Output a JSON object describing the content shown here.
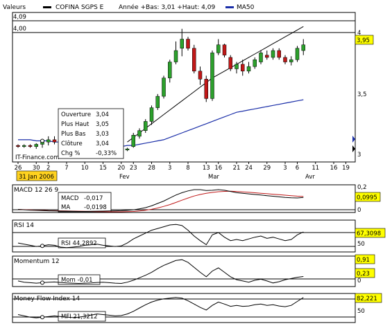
{
  "header": {
    "left_label": "Valeurs",
    "security_label": "COFINA SGPS E",
    "range_label": "Année +Bas: 3,01 +Haut: 4,09",
    "ma_label": "MA50"
  },
  "price_chart": {
    "hline_labels": [
      "4,09",
      "4,00"
    ],
    "y_ticks": [
      "4",
      "3,5",
      "3"
    ],
    "last_price_badge": "3,95",
    "date_badge": "31 Jan 2006",
    "watermark": "IT-Finance.com",
    "x_ticks": [
      "26",
      "30",
      "2",
      "7",
      "10",
      "15",
      "20",
      "23",
      "28",
      "3",
      "8",
      "13",
      "16",
      "21",
      "24",
      "29",
      "3",
      "6",
      "11",
      "16",
      "19"
    ],
    "month_labels": [
      "Fev",
      "Mar",
      "Avr"
    ],
    "tooltip": {
      "rows": [
        {
          "label": "Ouverture",
          "value": "3,04"
        },
        {
          "label": "Plus Haut",
          "value": "3,05"
        },
        {
          "label": "Plus Bas",
          "value": "3,03"
        },
        {
          "label": "Clôture",
          "value": "3,04"
        },
        {
          "label": "Chg %",
          "value": "-0,33%"
        }
      ]
    }
  },
  "indicators": {
    "macd": {
      "title": "MACD 12 26 9",
      "macd_label": "MACD",
      "macd_value": "-0,017",
      "ma_label": "MA",
      "ma_value": "-0,0198",
      "ticks": [
        "0,2",
        "0"
      ],
      "badge": "0,0995"
    },
    "rsi": {
      "title": "RSI 14",
      "readout": "RSI 44,2892",
      "ticks": [
        "50"
      ],
      "badge": "67,3098"
    },
    "momentum": {
      "title": "Momentum 12",
      "readout": "Mom -0,01",
      "ticks": [
        "0"
      ],
      "badges": [
        "0,91",
        "0,23"
      ]
    },
    "mfi": {
      "title": "Money Flow Index 14",
      "readout": "MFI 21,3212",
      "ticks": [
        "50"
      ],
      "badge": "82,221"
    }
  },
  "colors": {
    "up": "#2ca02c",
    "down": "#c01818",
    "ma": "#1a2ea8",
    "badge_bg": "#ffff00",
    "date_badge_bg": "#ffd21f"
  },
  "chart_data": [
    {
      "type": "candlestick",
      "title": "COFINA SGPS E",
      "ylim": [
        2.98,
        4.1
      ],
      "series": [
        {
          "name": "COFINA SGPS E",
          "ohlc": [
            [
              3.07,
              3.08,
              3.05,
              3.06
            ],
            [
              3.06,
              3.08,
              3.05,
              3.07
            ],
            [
              3.07,
              3.08,
              3.05,
              3.06
            ],
            [
              3.06,
              3.09,
              3.04,
              3.08
            ],
            [
              3.08,
              3.12,
              3.05,
              3.1
            ],
            [
              3.1,
              3.15,
              3.07,
              3.12
            ],
            [
              3.12,
              3.15,
              3.08,
              3.1
            ],
            [
              3.1,
              3.12,
              3.04,
              3.05
            ],
            [
              3.05,
              3.08,
              3.03,
              3.06
            ],
            [
              3.06,
              3.07,
              3.03,
              3.04
            ],
            [
              3.04,
              3.06,
              3.01,
              3.03
            ],
            [
              3.03,
              3.05,
              3.02,
              3.04
            ],
            [
              3.04,
              3.1,
              3.03,
              3.06
            ],
            [
              3.06,
              3.09,
              3.04,
              3.07
            ],
            [
              3.05,
              3.1,
              3.04,
              3.08
            ],
            [
              3.06,
              3.1,
              3.04,
              3.08
            ],
            [
              3.04,
              3.08,
              3.02,
              3.05
            ],
            [
              3.05,
              3.07,
              3.02,
              3.03
            ],
            [
              3.03,
              3.05,
              3.02,
              3.04
            ],
            [
              3.06,
              3.18,
              3.05,
              3.16
            ],
            [
              3.15,
              3.22,
              3.13,
              3.2
            ],
            [
              3.2,
              3.3,
              3.18,
              3.28
            ],
            [
              3.28,
              3.42,
              3.25,
              3.4
            ],
            [
              3.4,
              3.52,
              3.38,
              3.5
            ],
            [
              3.5,
              3.68,
              3.48,
              3.66
            ],
            [
              3.66,
              3.82,
              3.62,
              3.8
            ],
            [
              3.8,
              3.98,
              3.78,
              3.9
            ],
            [
              3.92,
              4.09,
              3.85,
              4.0
            ],
            [
              4.0,
              4.02,
              3.9,
              3.92
            ],
            [
              3.92,
              3.95,
              3.7,
              3.72
            ],
            [
              3.72,
              3.76,
              3.6,
              3.65
            ],
            [
              3.65,
              3.68,
              3.45,
              3.48
            ],
            [
              3.48,
              3.9,
              3.46,
              3.88
            ],
            [
              3.88,
              4.0,
              3.86,
              3.95
            ],
            [
              3.95,
              3.96,
              3.84,
              3.86
            ],
            [
              3.84,
              3.86,
              3.72,
              3.74
            ],
            [
              3.74,
              3.8,
              3.7,
              3.78
            ],
            [
              3.78,
              3.82,
              3.68,
              3.72
            ],
            [
              3.72,
              3.8,
              3.7,
              3.76
            ],
            [
              3.76,
              3.84,
              3.74,
              3.82
            ],
            [
              3.8,
              3.9,
              3.78,
              3.88
            ],
            [
              3.86,
              3.9,
              3.82,
              3.84
            ],
            [
              3.84,
              3.92,
              3.82,
              3.9
            ],
            [
              3.9,
              3.92,
              3.82,
              3.84
            ],
            [
              3.84,
              3.86,
              3.78,
              3.8
            ],
            [
              3.8,
              3.85,
              3.77,
              3.82
            ],
            [
              3.82,
              3.94,
              3.8,
              3.92
            ],
            [
              3.9,
              4.0,
              3.86,
              3.95
            ]
          ]
        },
        {
          "name": "MA50",
          "values": [
            3.12,
            3.12,
            3.12,
            3.11,
            3.11,
            3.11,
            3.1,
            3.1,
            3.09,
            3.09,
            3.08,
            3.08,
            3.07,
            3.07,
            3.06,
            3.06,
            3.06,
            3.06,
            3.07,
            3.07,
            3.08,
            3.09,
            3.1,
            3.11,
            3.12,
            3.14,
            3.16,
            3.18,
            3.2,
            3.22,
            3.24,
            3.26,
            3.28,
            3.3,
            3.32,
            3.34,
            3.36,
            3.37,
            3.38,
            3.39,
            3.4,
            3.41,
            3.42,
            3.43,
            3.44,
            3.45,
            3.46,
            3.47
          ]
        },
        {
          "name": "trendline",
          "values": [
            null,
            null,
            null,
            null,
            null,
            null,
            null,
            null,
            null,
            null,
            null,
            null,
            null,
            null,
            null,
            null,
            null,
            null,
            3.1,
            3.14,
            3.18,
            3.22,
            3.26,
            3.3,
            3.34,
            3.38,
            3.42,
            3.46,
            3.5,
            3.54,
            3.58,
            3.62,
            3.66,
            3.69,
            3.72,
            3.75,
            3.78,
            3.81,
            3.84,
            3.87,
            3.9,
            3.93,
            3.96,
            3.99,
            4.02,
            4.05,
            4.08,
            4.11
          ]
        }
      ]
    },
    {
      "type": "line",
      "title": "MACD 12 26 9",
      "ylim": [
        -0.02,
        0.2
      ],
      "series": [
        {
          "name": "MACD",
          "values": [
            0.0,
            -0.003,
            -0.006,
            -0.008,
            -0.01,
            -0.012,
            -0.013,
            -0.014,
            -0.015,
            -0.016,
            -0.017,
            -0.017,
            -0.016,
            -0.015,
            -0.014,
            -0.013,
            -0.012,
            -0.011,
            -0.008,
            -0.003,
            0.005,
            0.015,
            0.03,
            0.05,
            0.07,
            0.095,
            0.12,
            0.14,
            0.155,
            0.165,
            0.165,
            0.158,
            0.16,
            0.165,
            0.16,
            0.15,
            0.14,
            0.135,
            0.13,
            0.125,
            0.12,
            0.115,
            0.11,
            0.105,
            0.1,
            0.097,
            0.096,
            0.1
          ]
        },
        {
          "name": "MA",
          "values": [
            0.0,
            -0.002,
            -0.004,
            -0.006,
            -0.008,
            -0.01,
            -0.011,
            -0.012,
            -0.013,
            -0.014,
            -0.015,
            -0.016,
            -0.017,
            -0.018,
            -0.019,
            -0.02,
            -0.02,
            -0.02,
            -0.019,
            -0.017,
            -0.013,
            -0.007,
            0.001,
            0.012,
            0.025,
            0.04,
            0.058,
            0.077,
            0.095,
            0.112,
            0.125,
            0.135,
            0.142,
            0.148,
            0.151,
            0.152,
            0.15,
            0.147,
            0.143,
            0.139,
            0.135,
            0.131,
            0.127,
            0.123,
            0.119,
            0.115,
            0.111,
            0.108
          ]
        }
      ]
    },
    {
      "type": "line",
      "title": "RSI 14",
      "ylim": [
        35,
        85
      ],
      "series": [
        {
          "name": "RSI",
          "values": [
            48,
            46,
            44,
            42,
            43,
            45,
            44,
            41,
            40,
            41,
            42,
            44,
            45,
            46,
            44,
            43,
            42,
            43,
            48,
            55,
            60,
            65,
            70,
            73,
            76,
            79,
            80,
            78,
            70,
            60,
            52,
            45,
            62,
            66,
            58,
            52,
            54,
            52,
            55,
            58,
            60,
            56,
            58,
            55,
            52,
            54,
            62,
            67
          ]
        }
      ]
    },
    {
      "type": "line",
      "title": "Momentum 12",
      "ylim": [
        -0.12,
        1.0
      ],
      "series": [
        {
          "name": "Mom",
          "values": [
            0.05,
            0.0,
            -0.02,
            -0.04,
            -0.02,
            0.0,
            0.01,
            -0.01,
            -0.03,
            -0.04,
            -0.05,
            -0.04,
            -0.03,
            -0.01,
            0.0,
            -0.02,
            -0.04,
            -0.05,
            0.0,
            0.08,
            0.18,
            0.28,
            0.4,
            0.55,
            0.68,
            0.78,
            0.88,
            0.91,
            0.8,
            0.6,
            0.4,
            0.22,
            0.45,
            0.58,
            0.4,
            0.22,
            0.1,
            0.05,
            0.0,
            0.08,
            0.12,
            0.05,
            -0.03,
            0.02,
            0.1,
            0.15,
            0.2,
            0.23
          ]
        }
      ]
    },
    {
      "type": "line",
      "title": "Money Flow Index 14",
      "ylim": [
        10,
        90
      ],
      "series": [
        {
          "name": "MFI",
          "values": [
            30,
            26,
            22,
            20,
            22,
            24,
            26,
            24,
            22,
            21,
            22,
            25,
            28,
            32,
            30,
            28,
            26,
            27,
            32,
            40,
            50,
            60,
            68,
            74,
            78,
            80,
            82,
            80,
            72,
            62,
            52,
            44,
            58,
            68,
            62,
            55,
            58,
            55,
            56,
            60,
            62,
            58,
            60,
            56,
            54,
            58,
            70,
            82
          ]
        }
      ]
    }
  ]
}
